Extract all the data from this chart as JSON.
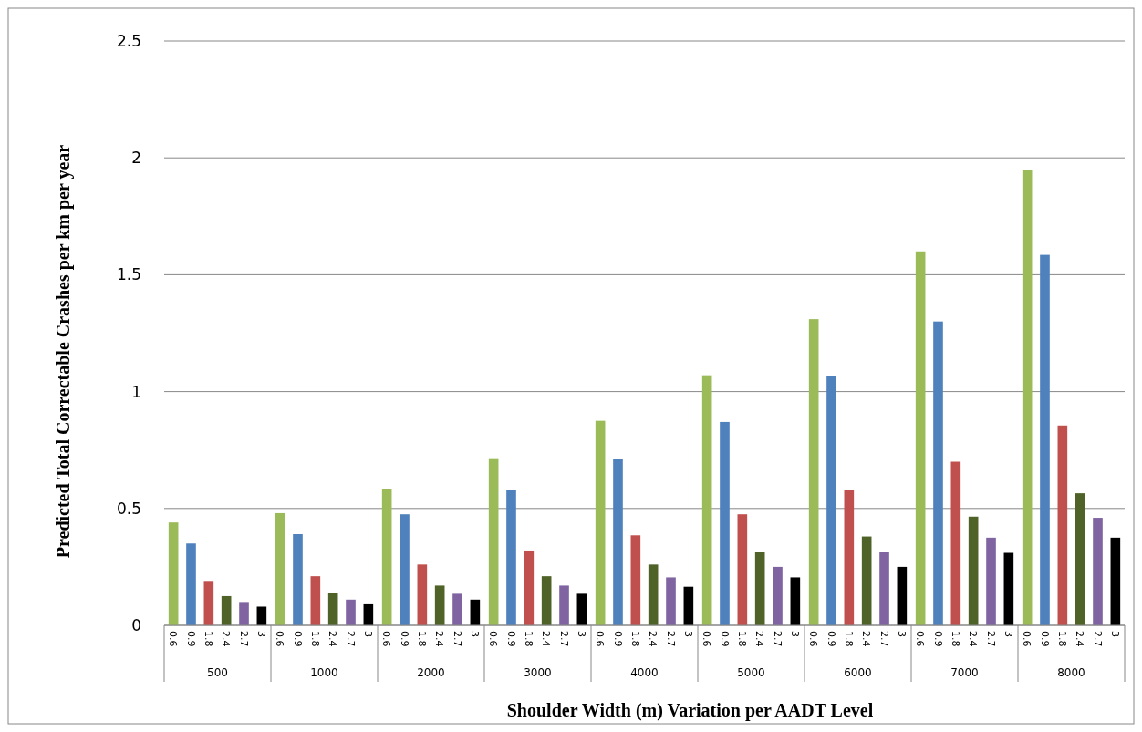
{
  "chart_data": {
    "type": "bar",
    "xlabel": "Shoulder Width (m) Variation per AADT Level",
    "ylabel": "Predicted Total Correctable Crashes per km per year",
    "categories": [
      "500",
      "1000",
      "2000",
      "3000",
      "4000",
      "5000",
      "6000",
      "7000",
      "8000"
    ],
    "series": [
      {
        "name": "0.6",
        "color": "#9bbb59",
        "values": [
          0.44,
          0.48,
          0.585,
          0.715,
          0.875,
          1.07,
          1.31,
          1.6,
          1.95
        ]
      },
      {
        "name": "0.9",
        "color": "#4f81bd",
        "values": [
          0.35,
          0.39,
          0.475,
          0.58,
          0.71,
          0.87,
          1.065,
          1.3,
          1.585
        ]
      },
      {
        "name": "1.8",
        "color": "#c0504d",
        "values": [
          0.19,
          0.21,
          0.26,
          0.32,
          0.385,
          0.475,
          0.58,
          0.7,
          0.855
        ]
      },
      {
        "name": "2.4",
        "color": "#4f6228",
        "values": [
          0.125,
          0.14,
          0.17,
          0.21,
          0.26,
          0.315,
          0.38,
          0.465,
          0.565
        ]
      },
      {
        "name": "2.7",
        "color": "#8064a2",
        "values": [
          0.1,
          0.11,
          0.135,
          0.17,
          0.205,
          0.25,
          0.315,
          0.375,
          0.46
        ]
      },
      {
        "name": "3",
        "color": "#000000",
        "values": [
          0.08,
          0.09,
          0.11,
          0.135,
          0.165,
          0.205,
          0.25,
          0.31,
          0.375
        ]
      }
    ],
    "ylim": [
      0,
      2.5
    ],
    "yticks": [
      0,
      0.5,
      1,
      1.5,
      2,
      2.5
    ],
    "grid": "y"
  }
}
